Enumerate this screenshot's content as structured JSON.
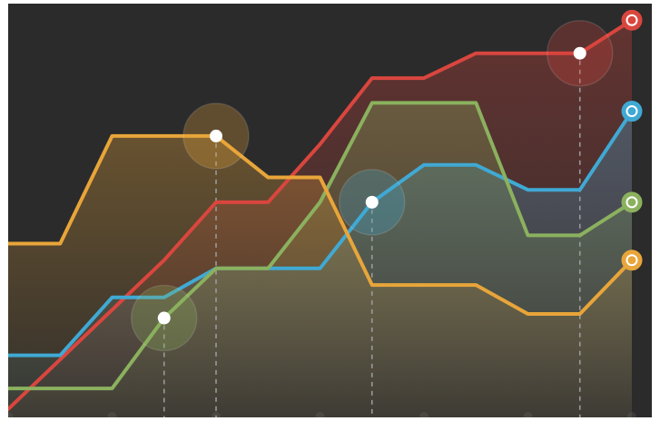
{
  "chart_data": {
    "type": "line",
    "title": "",
    "xlabel": "",
    "ylabel": "",
    "x": [
      0,
      1,
      2,
      3,
      4,
      5,
      6,
      7,
      8,
      9,
      10,
      11,
      12
    ],
    "xlim": [
      0,
      12
    ],
    "ylim": [
      0,
      100
    ],
    "grid": false,
    "legend": "none",
    "series": [
      {
        "color": "#d9463e",
        "values": [
          2,
          14,
          26,
          38,
          52,
          52,
          66,
          82,
          82,
          88,
          88,
          88,
          96
        ],
        "highlight_index": 11
      },
      {
        "color": "#40a9d3",
        "values": [
          15,
          15,
          29,
          29,
          36,
          36,
          36,
          52,
          61,
          61,
          55,
          55,
          74
        ],
        "highlight_index": 7
      },
      {
        "color": "#8bb15e",
        "values": [
          7,
          7,
          7,
          24,
          36,
          36,
          52,
          76,
          76,
          76,
          44,
          44,
          52
        ],
        "highlight_index": 3
      },
      {
        "color": "#e8a53a",
        "values": [
          42,
          42,
          68,
          68,
          68,
          58,
          58,
          32,
          32,
          32,
          25,
          25,
          38
        ],
        "highlight_index": 4
      }
    ]
  }
}
